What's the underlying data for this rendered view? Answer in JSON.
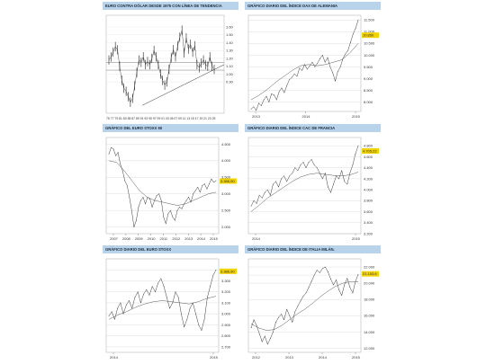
{
  "chart_data": [
    {
      "type": "line",
      "title": "EURO CONTRA DÓLAR DESDE 1975 CON LÍNEA DE TENDENCIA",
      "x_labels": "75 77 79 81 83 85 87 89 91 93 95 97 99 01 03 05 07 09 11 13 15 17 19 21 23 25",
      "y_ticks": [
        1.6,
        1.5,
        1.4,
        1.3,
        1.2,
        1.1,
        1.0,
        0.9
      ],
      "ylim": [
        0.5,
        1.75
      ],
      "series": [
        {
          "values": [
            1.18,
            1.22,
            1.28,
            1.35,
            1.31,
            1.1,
            0.92,
            0.82,
            0.78,
            0.71,
            0.64,
            0.69,
            0.85,
            1.02,
            1.18,
            1.15,
            1.22,
            1.12,
            1.16,
            1.12,
            1.2,
            1.3,
            1.22,
            1.12,
            1.0,
            0.92,
            0.86,
            0.9,
            1.06,
            1.21,
            1.31,
            1.22,
            1.36,
            1.47,
            1.56,
            1.27,
            1.46,
            1.32,
            1.38,
            1.28,
            1.36,
            1.12,
            1.08,
            1.14,
            1.18,
            1.12,
            1.1,
            1.22,
            1.1,
            1.06
          ]
        }
      ],
      "grid": false
    },
    {
      "type": "line",
      "title": "GRÁFICO DIARIO DEL ÍNDICE DAX DE ALEMANIA",
      "x_ticks": [
        "2013",
        "2014",
        "2015"
      ],
      "y_ticks": [
        "11.500",
        "11.000",
        "10.500",
        "10.000",
        "9.500",
        "9.000",
        "8.500",
        "8.000"
      ],
      "highlight": "10.850",
      "ylim": [
        7600,
        11700
      ],
      "series": [
        {
          "values": [
            7700,
            7800,
            7650,
            7950,
            7850,
            8100,
            8250,
            8000,
            8350,
            8300,
            8100,
            8450,
            8600,
            8400,
            8700,
            8950,
            9050,
            9200,
            9100,
            9450,
            9350,
            9600,
            9400,
            9550,
            9700,
            9500,
            9650,
            9850,
            10000,
            9700,
            9900,
            9500,
            9250,
            8900,
            9300,
            9500,
            9850,
            10050,
            10200,
            10550,
            10900,
            11150,
            11500
          ]
        }
      ],
      "ma_values": [
        8100,
        8300,
        8550,
        8850,
        9100,
        9350,
        9550,
        9600,
        9550,
        9600,
        9700,
        9800,
        10100,
        10500
      ],
      "grid": true
    },
    {
      "type": "line",
      "title": "GRÁFICO DEL EURO STOXX 50",
      "x_ticks": [
        "2007",
        "2008",
        "2009",
        "2010",
        "2011",
        "2012",
        "2013",
        "2014",
        "2015"
      ],
      "y_ticks": [
        "4.500",
        "4.000",
        "3.500",
        "3.000",
        "2.500",
        "2.000"
      ],
      "highlight": "3.386,90",
      "ylim": [
        1800,
        4700
      ],
      "series": [
        {
          "values": [
            4200,
            4400,
            4350,
            4150,
            4250,
            3900,
            3700,
            3400,
            3250,
            2900,
            2500,
            2000,
            2200,
            2600,
            2800,
            2900,
            2700,
            2900,
            2850,
            2600,
            2800,
            2950,
            3000,
            2800,
            2300,
            2100,
            2400,
            2500,
            2300,
            2200,
            2500,
            2600,
            2550,
            2700,
            2800,
            2900,
            2750,
            3000,
            3100,
            3200,
            3050,
            3250,
            3300,
            3150,
            3300,
            3450,
            3350,
            3400
          ]
        }
      ],
      "ma_values": [
        4000,
        3950,
        3700,
        3400,
        3100,
        2900,
        2800,
        2750,
        2700,
        2650,
        2700,
        2800,
        2900,
        3000,
        3050
      ],
      "grid": true
    },
    {
      "type": "line",
      "title": "GRÁFICO DIARIO DEL ÍNDICE CAC DE FRANCIA",
      "x_ticks": [
        "2014",
        "2015"
      ],
      "y_ticks": [
        "4.800",
        "4.600",
        "4.400",
        "4.200",
        "4.000",
        "3.800",
        "3.600",
        "3.400",
        "3.200"
      ],
      "highlight": "4.705,22",
      "ylim": [
        3200,
        4950
      ],
      "series": [
        {
          "values": [
            3700,
            3800,
            3750,
            3900,
            3850,
            3950,
            4000,
            3900,
            4100,
            4150,
            4050,
            4200,
            4250,
            4150,
            4250,
            4300,
            4400,
            4350,
            4450,
            4500,
            4400,
            4500,
            4550,
            4450,
            4400,
            4300,
            4200,
            4300,
            4050,
            3950,
            4100,
            4250,
            4200,
            4350,
            4150,
            4100,
            4300,
            4450,
            4650,
            4800
          ]
        }
      ],
      "ma_values": [
        3600,
        3720,
        3850,
        3950,
        4050,
        4150,
        4230,
        4280,
        4300,
        4280,
        4260,
        4250,
        4270,
        4320
      ],
      "grid": true
    },
    {
      "type": "line",
      "title": "GRÁFICO DIARIO DEL EURO STOXX",
      "x_ticks": [
        "2014",
        "2015"
      ],
      "y_ticks": [
        "3.400",
        "3.300",
        "3.200",
        "3.100",
        "3.000",
        "2.900",
        "2.800",
        "2.700"
      ],
      "highlight": "3.386,90",
      "ylim": [
        2650,
        3500
      ],
      "series": [
        {
          "values": [
            2980,
            3020,
            2950,
            3050,
            3100,
            3000,
            3080,
            3120,
            3050,
            3150,
            3200,
            3100,
            3180,
            3220,
            3170,
            3250,
            3200,
            3280,
            3320,
            3250,
            3150,
            3050,
            3100,
            3200,
            3150,
            3000,
            2880,
            2950,
            3050,
            3100,
            3000,
            2900,
            2850,
            2950,
            3150,
            3250,
            3350,
            3400
          ]
        }
      ],
      "ma_values": [
        2950,
        2990,
        3020,
        3060,
        3090,
        3110,
        3120,
        3110,
        3100,
        3090,
        3110,
        3140,
        3160
      ],
      "grid": true
    },
    {
      "type": "line",
      "title": "GRÁFICO DIARIO DEL ÍNDICE DE ITALIA MILÁN.",
      "x_ticks": [
        "2012",
        "2013",
        "2014",
        "2015"
      ],
      "y_ticks": [
        "22.000",
        "21.000",
        "20.000",
        "18.000",
        "16.000",
        "14.000",
        "12.000"
      ],
      "highlight": "21.153,6",
      "ylim": [
        11500,
        23000
      ],
      "series": [
        {
          "values": [
            14500,
            15500,
            14800,
            13800,
            12800,
            13500,
            12500,
            13200,
            14000,
            15200,
            15800,
            16200,
            15500,
            16800,
            16000,
            15200,
            16500,
            17200,
            17800,
            18400,
            18800,
            19500,
            20200,
            21000,
            21600,
            21300,
            21800,
            22000,
            21400,
            20500,
            19800,
            20400,
            19200,
            18500,
            19800,
            20600,
            19500,
            18800,
            20200,
            21100
          ]
        }
      ],
      "ma_values": [
        15000,
        14500,
        14200,
        14300,
        14800,
        15500,
        16200,
        16800,
        17500,
        18300,
        19000,
        19600,
        20000,
        20200,
        20200
      ],
      "grid": true
    }
  ]
}
